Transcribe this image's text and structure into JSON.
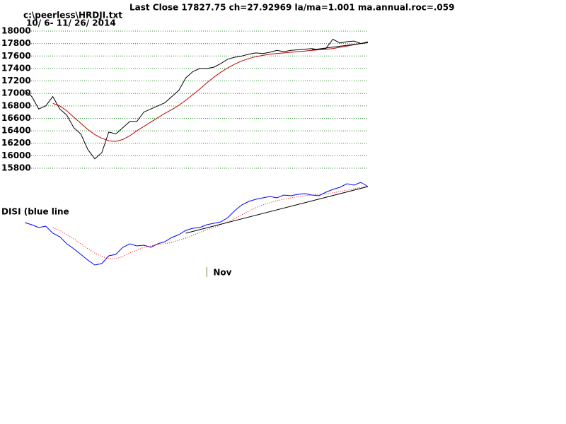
{
  "chart_data": [
    {
      "type": "line",
      "title": "Last Close 17827.75 ch=27.92969  la/ma=1.001 ma.annual.roc=.059",
      "subtitle": [
        "c:\\peerless\\HRDJI.txt",
        "10/ 6- 11/ 26/ 2014"
      ],
      "ylim": [
        15800,
        18000
      ],
      "yticks": [
        15800,
        16000,
        16200,
        16400,
        16600,
        16800,
        17000,
        17200,
        17400,
        17600,
        17800,
        18000
      ],
      "grid": true,
      "grid_color": "#2e8b2e",
      "series": [
        {
          "color": "#000000",
          "values": [
            17050,
            16950,
            16750,
            16800,
            16950,
            16750,
            16650,
            16450,
            16350,
            16100,
            15950,
            16050,
            16380,
            16350,
            16450,
            16550,
            16550,
            16700,
            16750,
            16800,
            16850,
            16950,
            17050,
            17250,
            17350,
            17400,
            17400,
            17420,
            17480,
            17550,
            17580,
            17600,
            17630,
            17650,
            17640,
            17660,
            17690,
            17670,
            17690,
            17700,
            17710,
            17720,
            17700,
            17720,
            17870,
            17810,
            17830,
            17840,
            17800,
            17828
          ]
        },
        {
          "color": "#c00000",
          "values": [
            null,
            null,
            null,
            null,
            16840,
            16800,
            16720,
            16620,
            16520,
            16420,
            16340,
            16280,
            16240,
            16230,
            16260,
            16320,
            16400,
            16470,
            16540,
            16610,
            16680,
            16740,
            16810,
            16890,
            16980,
            17070,
            17170,
            17260,
            17340,
            17410,
            17470,
            17520,
            17560,
            17590,
            17610,
            17630,
            17640,
            17650,
            17660,
            17670,
            17680,
            17690,
            17700,
            17710,
            17720,
            17740,
            17760,
            17780,
            17800,
            17815
          ]
        }
      ],
      "trendlines": [
        {
          "color": "#000000",
          "x": [
            41,
            49
          ],
          "values": [
            17700,
            17815
          ]
        }
      ]
    },
    {
      "type": "line",
      "title": "DISI (blue line",
      "ylim": [
        20,
        150
      ],
      "series": [
        {
          "color": "#0000ff",
          "values": [
            85,
            82,
            78,
            80,
            70,
            65,
            55,
            48,
            40,
            32,
            25,
            27,
            38,
            40,
            50,
            55,
            52,
            53,
            50,
            55,
            58,
            64,
            68,
            74,
            77,
            78,
            82,
            84,
            86,
            92,
            102,
            110,
            115,
            118,
            120,
            122,
            120,
            124,
            123,
            125,
            126,
            124,
            123,
            128,
            132,
            135,
            140,
            138,
            142,
            136
          ]
        },
        {
          "color": "#ff0000",
          "style": "dotted",
          "values": [
            null,
            null,
            null,
            null,
            78,
            74,
            68,
            62,
            55,
            48,
            42,
            37,
            34,
            34,
            37,
            42,
            46,
            50,
            52,
            54,
            55,
            57,
            60,
            63,
            67,
            71,
            75,
            78,
            82,
            86,
            91,
            96,
            101,
            106,
            110,
            113,
            116,
            118,
            120,
            122,
            123,
            124,
            125,
            126,
            127,
            129,
            131,
            133,
            135,
            136
          ]
        }
      ],
      "trendlines": [
        {
          "color": "#000000",
          "x": [
            23,
            49
          ],
          "values": [
            70,
            136
          ]
        }
      ],
      "annotations": [
        {
          "text": "Nov",
          "x": 26,
          "color": "#808040"
        }
      ]
    }
  ]
}
